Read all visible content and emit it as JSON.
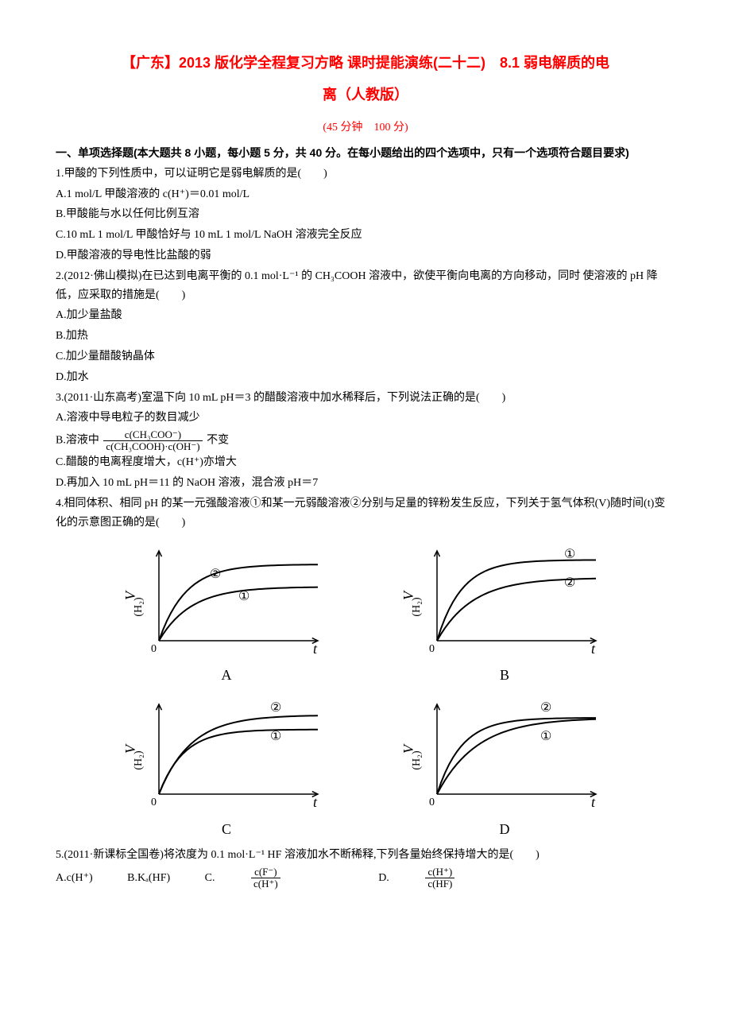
{
  "title_line1": "【广东】2013 版化学全程复习方略 课时提能演练(二十二)　8.1 弱电解质的电",
  "title_line2": "离（人教版）",
  "timing": "(45 分钟　100 分)",
  "section1": "一、单项选择题(本大题共 8 小题，每小题 5 分，共 40 分。在每小题给出的四个选项中，只有一个选项符合题目要求)",
  "q1": {
    "stem": "1.甲酸的下列性质中，可以证明它是弱电解质的是(　　)",
    "A": "A.1 mol/L 甲酸溶液的 c(H⁺)＝0.01 mol/L",
    "B": "B.甲酸能与水以任何比例互溶",
    "C": "C.10 mL 1 mol/L 甲酸恰好与 10 mL 1 mol/L NaOH 溶液完全反应",
    "D": "D.甲酸溶液的导电性比盐酸的弱"
  },
  "q2": {
    "stem": "2.(2012·佛山模拟)在已达到电离平衡的 0.1 mol·L⁻¹ 的 CH₃COOH 溶液中，欲使平衡向电离的方向移动，同时 使溶液的 pH 降低，应采取的措施是(　　)",
    "A": "A.加少量盐酸",
    "B": "B.加热",
    "C": "C.加少量醋酸钠晶体",
    "D": "D.加水"
  },
  "q3": {
    "stem": "3.(2011·山东高考)室温下向 10 mL pH＝3 的醋酸溶液中加水稀释后，下列说法正确的是(　　)",
    "A": "A.溶液中导电粒子的数目减少",
    "B_pre": "B.溶液中",
    "B_num": "c(CH₃COO⁻)",
    "B_den": "c(CH₃COOH)·c(OH⁻)",
    "B_post": "不变",
    "C": "C.醋酸的电离程度增大，c(H⁺)亦增大",
    "D": "D.再加入 10 mL pH＝11 的 NaOH 溶液，混合液 pH＝7"
  },
  "q4": {
    "stem": "4.相同体积、相同 pH 的某一元强酸溶液①和某一元弱酸溶液②分别与足量的锌粉发生反应，下列关于氢气体积(V)随时间(t)变化的示意图正确的是(　　)"
  },
  "q5": {
    "stem": "5.(2011·新课标全国卷)将浓度为 0.1 mol·L⁻¹ HF 溶液加水不断稀释,下列各量始终保持增大的是(　　)",
    "A": "A.c(H⁺)",
    "B": "B.Kₐ(HF)",
    "C_pre": "C.",
    "C_num": "c(F⁻)",
    "C_den": "c(H⁺)",
    "D_pre": "D.",
    "D_num": "c(H⁺)",
    "D_den": "c(HF)"
  },
  "charts": {
    "axis_color": "#000000",
    "curve_color": "#000000",
    "y_label": "V(H₂)",
    "x_label": "t",
    "origin_label": "0",
    "label_font": "italic 18px 'Times New Roman', serif",
    "panels": [
      {
        "letter": "A",
        "series": [
          {
            "label": "②",
            "plateau": 0.85,
            "steep": 1.2,
            "lx": 0.32,
            "ly": 0.7
          },
          {
            "label": "①",
            "plateau": 0.6,
            "steep": 1.0,
            "lx": 0.5,
            "ly": 0.45
          }
        ]
      },
      {
        "letter": "B",
        "series": [
          {
            "label": "①",
            "plateau": 0.9,
            "steep": 1.3,
            "lx": 0.8,
            "ly": 0.92
          },
          {
            "label": "②",
            "plateau": 0.7,
            "steep": 0.9,
            "lx": 0.8,
            "ly": 0.6
          }
        ]
      },
      {
        "letter": "C",
        "series": [
          {
            "label": "②",
            "plateau": 0.88,
            "steep": 1.0,
            "lx": 0.7,
            "ly": 0.92
          },
          {
            "label": "①",
            "plateau": 0.72,
            "steep": 1.3,
            "lx": 0.7,
            "ly": 0.6
          }
        ]
      },
      {
        "letter": "D",
        "series": [
          {
            "label": "②",
            "plateau": 0.85,
            "steep": 1.3,
            "lx": 0.65,
            "ly": 0.92
          },
          {
            "label": "①",
            "plateau": 0.85,
            "steep": 0.8,
            "lx": 0.65,
            "ly": 0.6
          }
        ]
      }
    ]
  }
}
